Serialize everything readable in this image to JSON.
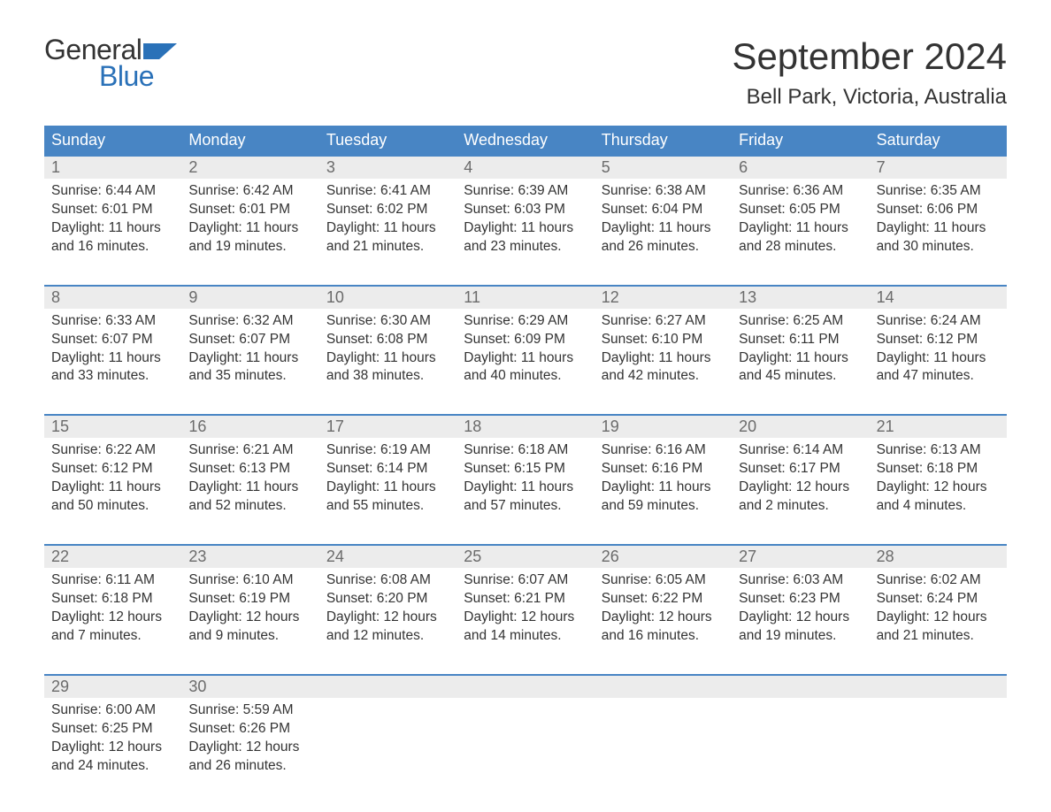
{
  "logo": {
    "line1": "General",
    "line2": "Blue",
    "brand_color": "#2a71b8"
  },
  "title": "September 2024",
  "location": "Bell Park, Victoria, Australia",
  "day_names": [
    "Sunday",
    "Monday",
    "Tuesday",
    "Wednesday",
    "Thursday",
    "Friday",
    "Saturday"
  ],
  "colors": {
    "header_bg": "#4885c4",
    "header_text": "#ffffff",
    "daynum_bg": "#ececec",
    "daynum_text": "#6b6b6b",
    "body_text": "#333333",
    "week_divider": "#4885c4",
    "page_bg": "#ffffff"
  },
  "fonts": {
    "title_size_pt": 32,
    "location_size_pt": 18,
    "dayheader_size_pt": 14,
    "daynum_size_pt": 14,
    "cell_size_pt": 12
  },
  "labels": {
    "sunrise": "Sunrise:",
    "sunset": "Sunset:",
    "daylight": "Daylight:"
  },
  "weeks": [
    [
      {
        "n": "1",
        "sunrise": "6:44 AM",
        "sunset": "6:01 PM",
        "daylight": "11 hours and 16 minutes."
      },
      {
        "n": "2",
        "sunrise": "6:42 AM",
        "sunset": "6:01 PM",
        "daylight": "11 hours and 19 minutes."
      },
      {
        "n": "3",
        "sunrise": "6:41 AM",
        "sunset": "6:02 PM",
        "daylight": "11 hours and 21 minutes."
      },
      {
        "n": "4",
        "sunrise": "6:39 AM",
        "sunset": "6:03 PM",
        "daylight": "11 hours and 23 minutes."
      },
      {
        "n": "5",
        "sunrise": "6:38 AM",
        "sunset": "6:04 PM",
        "daylight": "11 hours and 26 minutes."
      },
      {
        "n": "6",
        "sunrise": "6:36 AM",
        "sunset": "6:05 PM",
        "daylight": "11 hours and 28 minutes."
      },
      {
        "n": "7",
        "sunrise": "6:35 AM",
        "sunset": "6:06 PM",
        "daylight": "11 hours and 30 minutes."
      }
    ],
    [
      {
        "n": "8",
        "sunrise": "6:33 AM",
        "sunset": "6:07 PM",
        "daylight": "11 hours and 33 minutes."
      },
      {
        "n": "9",
        "sunrise": "6:32 AM",
        "sunset": "6:07 PM",
        "daylight": "11 hours and 35 minutes."
      },
      {
        "n": "10",
        "sunrise": "6:30 AM",
        "sunset": "6:08 PM",
        "daylight": "11 hours and 38 minutes."
      },
      {
        "n": "11",
        "sunrise": "6:29 AM",
        "sunset": "6:09 PM",
        "daylight": "11 hours and 40 minutes."
      },
      {
        "n": "12",
        "sunrise": "6:27 AM",
        "sunset": "6:10 PM",
        "daylight": "11 hours and 42 minutes."
      },
      {
        "n": "13",
        "sunrise": "6:25 AM",
        "sunset": "6:11 PM",
        "daylight": "11 hours and 45 minutes."
      },
      {
        "n": "14",
        "sunrise": "6:24 AM",
        "sunset": "6:12 PM",
        "daylight": "11 hours and 47 minutes."
      }
    ],
    [
      {
        "n": "15",
        "sunrise": "6:22 AM",
        "sunset": "6:12 PM",
        "daylight": "11 hours and 50 minutes."
      },
      {
        "n": "16",
        "sunrise": "6:21 AM",
        "sunset": "6:13 PM",
        "daylight": "11 hours and 52 minutes."
      },
      {
        "n": "17",
        "sunrise": "6:19 AM",
        "sunset": "6:14 PM",
        "daylight": "11 hours and 55 minutes."
      },
      {
        "n": "18",
        "sunrise": "6:18 AM",
        "sunset": "6:15 PM",
        "daylight": "11 hours and 57 minutes."
      },
      {
        "n": "19",
        "sunrise": "6:16 AM",
        "sunset": "6:16 PM",
        "daylight": "11 hours and 59 minutes."
      },
      {
        "n": "20",
        "sunrise": "6:14 AM",
        "sunset": "6:17 PM",
        "daylight": "12 hours and 2 minutes."
      },
      {
        "n": "21",
        "sunrise": "6:13 AM",
        "sunset": "6:18 PM",
        "daylight": "12 hours and 4 minutes."
      }
    ],
    [
      {
        "n": "22",
        "sunrise": "6:11 AM",
        "sunset": "6:18 PM",
        "daylight": "12 hours and 7 minutes."
      },
      {
        "n": "23",
        "sunrise": "6:10 AM",
        "sunset": "6:19 PM",
        "daylight": "12 hours and 9 minutes."
      },
      {
        "n": "24",
        "sunrise": "6:08 AM",
        "sunset": "6:20 PM",
        "daylight": "12 hours and 12 minutes."
      },
      {
        "n": "25",
        "sunrise": "6:07 AM",
        "sunset": "6:21 PM",
        "daylight": "12 hours and 14 minutes."
      },
      {
        "n": "26",
        "sunrise": "6:05 AM",
        "sunset": "6:22 PM",
        "daylight": "12 hours and 16 minutes."
      },
      {
        "n": "27",
        "sunrise": "6:03 AM",
        "sunset": "6:23 PM",
        "daylight": "12 hours and 19 minutes."
      },
      {
        "n": "28",
        "sunrise": "6:02 AM",
        "sunset": "6:24 PM",
        "daylight": "12 hours and 21 minutes."
      }
    ],
    [
      {
        "n": "29",
        "sunrise": "6:00 AM",
        "sunset": "6:25 PM",
        "daylight": "12 hours and 24 minutes."
      },
      {
        "n": "30",
        "sunrise": "5:59 AM",
        "sunset": "6:26 PM",
        "daylight": "12 hours and 26 minutes."
      },
      null,
      null,
      null,
      null,
      null
    ]
  ]
}
